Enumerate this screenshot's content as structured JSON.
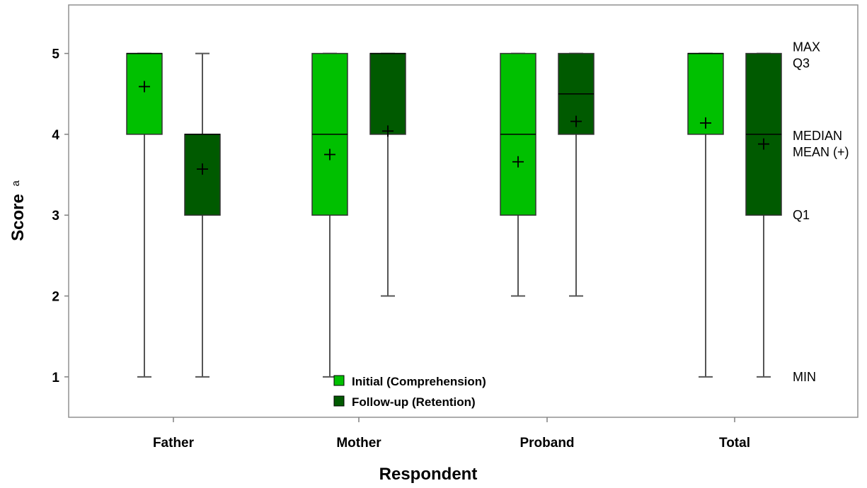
{
  "chart_data": {
    "type": "boxplot",
    "xlabel": "Respondent",
    "ylabel": "Score",
    "ylabel_superscript": "a",
    "ylim": [
      0.5,
      5.6
    ],
    "yticks": [
      1,
      2,
      3,
      4,
      5
    ],
    "categories": [
      "Father",
      "Mother",
      "Proband",
      "Total"
    ],
    "series": [
      {
        "name": "Initial (Comprehension)",
        "color": "#00c000",
        "boxes": [
          {
            "min": 1,
            "q1": 4,
            "median": 5,
            "q3": 5,
            "max": 5,
            "mean": 4.59
          },
          {
            "min": 1,
            "q1": 3,
            "median": 4,
            "q3": 5,
            "max": 5,
            "mean": 3.75
          },
          {
            "min": 2,
            "q1": 3,
            "median": 4,
            "q3": 5,
            "max": 5,
            "mean": 3.66
          },
          {
            "min": 1,
            "q1": 4,
            "median": 5,
            "q3": 5,
            "max": 5,
            "mean": 4.14
          }
        ]
      },
      {
        "name": "Follow-up (Retention)",
        "color": "#005a00",
        "boxes": [
          {
            "min": 1,
            "q1": 3,
            "median": 4,
            "q3": 4,
            "max": 5,
            "mean": 3.57
          },
          {
            "min": 2,
            "q1": 4,
            "median": 5,
            "q3": 5,
            "max": 5,
            "mean": 4.04
          },
          {
            "min": 2,
            "q1": 4,
            "median": 4.5,
            "q3": 5,
            "max": 5,
            "mean": 4.16
          },
          {
            "min": 1,
            "q1": 3,
            "median": 4,
            "q3": 5,
            "max": 5,
            "mean": 3.88
          }
        ]
      }
    ],
    "annotations": [
      {
        "text": "MAX",
        "y": 5.08
      },
      {
        "text": "Q3",
        "y": 4.88
      },
      {
        "text": "MEDIAN",
        "y": 3.98
      },
      {
        "text": "MEAN (+)",
        "y": 3.78
      },
      {
        "text": "Q1",
        "y": 3.0
      },
      {
        "text": "MIN",
        "y": 1.0
      }
    ],
    "legend": {
      "placement": "bottom-center",
      "items": [
        "Initial (Comprehension)",
        "Follow-up (Retention)"
      ]
    }
  }
}
